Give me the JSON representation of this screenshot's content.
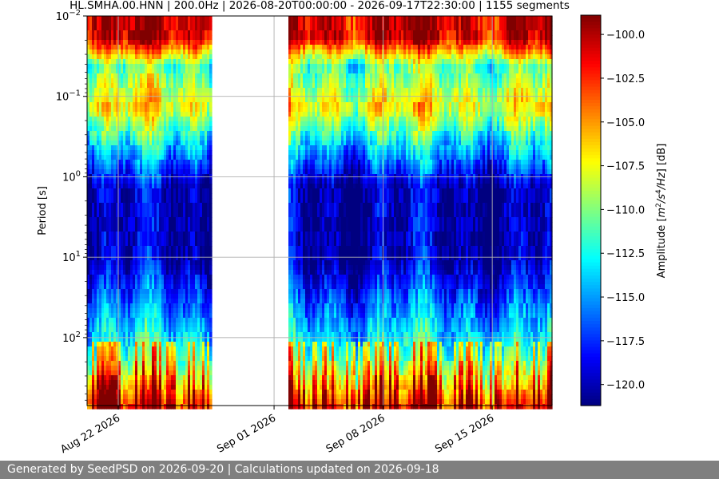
{
  "chart_data": {
    "type": "heatmap",
    "title": "HL.SMHA.00.HNN | 200.0Hz | 2026-08-20T00:00:00 - 2026-09-17T22:30:00 | 1155 segments",
    "ylabel": "Period [s]",
    "y_scale": "log",
    "y_inverted": true,
    "ylim": [
      0.01,
      700
    ],
    "y_ticks": [
      {
        "value": 0.01,
        "base": "10",
        "exp": "−2"
      },
      {
        "value": 0.1,
        "base": "10",
        "exp": "−1"
      },
      {
        "value": 1,
        "base": "10",
        "exp": "0"
      },
      {
        "value": 10,
        "base": "10",
        "exp": "1"
      },
      {
        "value": 100,
        "base": "10",
        "exp": "2"
      }
    ],
    "x_start": "2026-08-20",
    "x_end": "2026-09-17",
    "x_ticks": [
      "Aug 22 2026",
      "Sep 01 2026",
      "Sep 08 2026",
      "Sep 15 2026"
    ],
    "data_gaps": [
      [
        "2026-08-28",
        "2026-09-01"
      ]
    ],
    "grid": true,
    "colorbar": {
      "label_prefix": "Amplitude [",
      "label_units_html": "<tspan font-style='italic'>m</tspan><tspan font-size='9' dy='-5'>2</tspan><tspan dy='5' font-style='italic'>/s</tspan><tspan font-size='9' dy='-5'>4</tspan><tspan dy='5' font-style='italic'>/Hz</tspan>",
      "label_suffix": "] [dB]",
      "range": [
        -121.2,
        -98.9
      ],
      "ticks": [
        -100.0,
        -102.5,
        -105.0,
        -107.5,
        -110.0,
        -112.5,
        -115.0,
        -117.5,
        -120.0
      ],
      "tick_labels": [
        "−100.0",
        "−102.5",
        "−105.0",
        "−107.5",
        "−110.0",
        "−112.5",
        "−115.0",
        "−117.5",
        "−120.0"
      ],
      "colormap": "jet"
    }
  },
  "footer": {
    "text": "Generated by SeedPSD on 2026-09-20 | Calculations updated on 2026-09-18"
  }
}
